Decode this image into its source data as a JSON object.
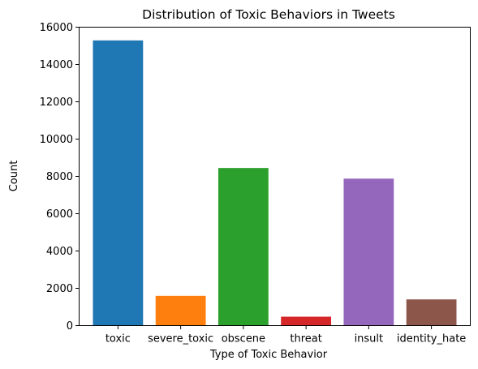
{
  "chart_data": {
    "type": "bar",
    "title": "Distribution of Toxic Behaviors in Tweets",
    "xlabel": "Type of Toxic Behavior",
    "ylabel": "Count",
    "categories": [
      "toxic",
      "severe_toxic",
      "obscene",
      "threat",
      "insult",
      "identity_hate"
    ],
    "values": [
      15290,
      1595,
      8450,
      478,
      7880,
      1405
    ],
    "colors": [
      "#1f77b4",
      "#ff7f0e",
      "#2ca02c",
      "#d62728",
      "#9467bd",
      "#8c564b"
    ],
    "ylim": [
      0,
      16000
    ],
    "yticks": [
      0,
      2000,
      4000,
      6000,
      8000,
      10000,
      12000,
      14000,
      16000
    ],
    "grid": false,
    "legend": "none"
  }
}
